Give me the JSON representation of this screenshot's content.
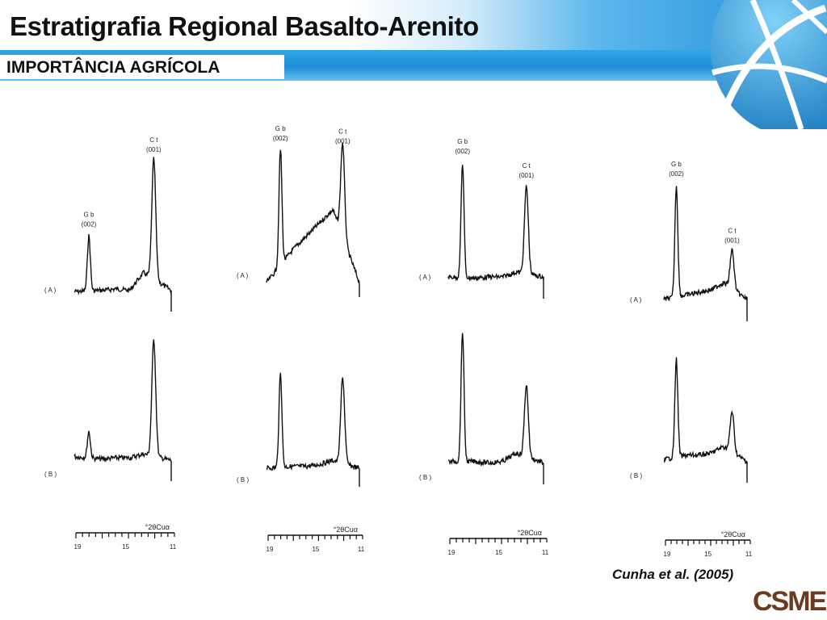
{
  "slide": {
    "title": "Estratigrafia Regional Basalto-Arenito",
    "subtitle": "IMPORTÂNCIA AGRÍCOLA",
    "citation": "Cunha et al. (2005)",
    "logo": "CSME"
  },
  "panels": [
    {
      "a_label": "( A )",
      "b_label": "( B )",
      "peak1_code": "G b",
      "peak1_hkl": "(002)",
      "peak2_code": "C t",
      "peak2_hkl": "(001)",
      "axis_label": "°2θCuα",
      "ticks": [
        "19",
        "15",
        "11"
      ]
    },
    {
      "a_label": "( A )",
      "b_label": "( B )",
      "peak1_code": "G b",
      "peak1_hkl": "(002)",
      "peak2_code": "C t",
      "peak2_hkl": "(001)",
      "axis_label": "°2θCuα",
      "ticks": [
        "19",
        "15",
        "11"
      ]
    },
    {
      "a_label": "( A )",
      "b_label": "( B )",
      "peak1_code": "G b",
      "peak1_hkl": "(002)",
      "peak2_code": "C t",
      "peak2_hkl": "(001)",
      "axis_label": "°2θCuα",
      "ticks": [
        "19",
        "15",
        "11"
      ]
    },
    {
      "a_label": "( A )",
      "b_label": "( B )",
      "peak1_code": "G b",
      "peak1_hkl": "(002)",
      "peak2_code": "C t",
      "peak2_hkl": "(001)",
      "axis_label": "°2θCuα",
      "ticks": [
        "19",
        "15",
        "11"
      ]
    }
  ],
  "chart_data": [
    {
      "type": "line",
      "series": [
        {
          "values": [
            0.04,
            0.45,
            0.05,
            0.06,
            0.05,
            0.18,
            1.0,
            0.05
          ]
        },
        {
          "values": [
            0.08,
            0.28,
            0.06,
            0.07,
            0.07,
            0.1,
            1.0,
            0.05
          ]
        }
      ]
    },
    {
      "type": "line",
      "series": [
        {
          "values": [
            0.0,
            1.0,
            0.25,
            0.35,
            0.45,
            0.55,
            0.98,
            0.0
          ]
        },
        {
          "values": [
            0.04,
            1.0,
            0.06,
            0.06,
            0.08,
            0.12,
            0.95,
            0.04
          ]
        }
      ]
    },
    {
      "type": "line",
      "series": [
        {
          "values": [
            0.06,
            1.0,
            0.05,
            0.06,
            0.06,
            0.1,
            0.8,
            0.06
          ]
        },
        {
          "values": [
            0.06,
            1.0,
            0.06,
            0.05,
            0.06,
            0.12,
            0.6,
            0.05
          ]
        }
      ]
    },
    {
      "type": "line",
      "series": [
        {
          "values": [
            0.06,
            1.0,
            0.1,
            0.12,
            0.14,
            0.2,
            0.45,
            0.06
          ]
        },
        {
          "values": [
            0.08,
            1.0,
            0.12,
            0.12,
            0.14,
            0.2,
            0.5,
            0.06
          ]
        }
      ]
    }
  ],
  "colors": {
    "accent_blue": "#1e8fd6",
    "logo_brown": "#6b3a1f"
  }
}
